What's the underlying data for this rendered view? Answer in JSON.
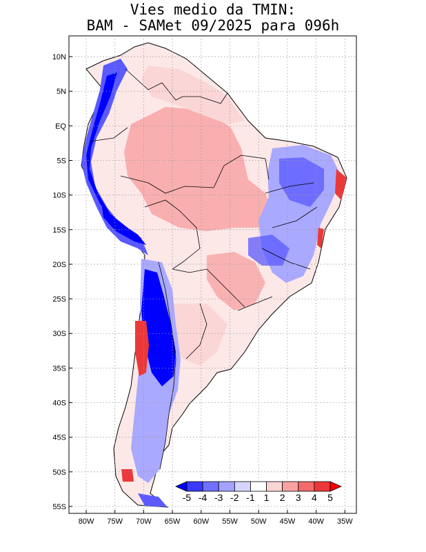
{
  "title": {
    "line1": "Vies medio da TMIN:",
    "line2": "BAM - SAMet 09/2025  para 096h"
  },
  "map": {
    "lat_ticks": [
      {
        "value": 10,
        "label": "10N"
      },
      {
        "value": 5,
        "label": "5N"
      },
      {
        "value": 0,
        "label": "EQ"
      },
      {
        "value": -5,
        "label": "5S"
      },
      {
        "value": -10,
        "label": "10S"
      },
      {
        "value": -15,
        "label": "15S"
      },
      {
        "value": -20,
        "label": "20S"
      },
      {
        "value": -25,
        "label": "25S"
      },
      {
        "value": -30,
        "label": "30S"
      },
      {
        "value": -35,
        "label": "35S"
      },
      {
        "value": -40,
        "label": "40S"
      },
      {
        "value": -45,
        "label": "45S"
      },
      {
        "value": -50,
        "label": "50S"
      },
      {
        "value": -55,
        "label": "55S"
      }
    ],
    "lon_ticks": [
      {
        "value": -80,
        "label": "80W"
      },
      {
        "value": -75,
        "label": "75W"
      },
      {
        "value": -70,
        "label": "70W"
      },
      {
        "value": -65,
        "label": "65W"
      },
      {
        "value": -60,
        "label": "60W"
      },
      {
        "value": -55,
        "label": "55W"
      },
      {
        "value": -50,
        "label": "50W"
      },
      {
        "value": -45,
        "label": "45W"
      },
      {
        "value": -40,
        "label": "40W"
      },
      {
        "value": -35,
        "label": "35W"
      }
    ],
    "lon_range": [
      -83,
      -33
    ],
    "lat_range": [
      -56,
      13
    ]
  },
  "colorbar": {
    "labels": [
      "-5",
      "-4",
      "-3",
      "-2",
      "-1",
      "1",
      "2",
      "3",
      "4",
      "5"
    ],
    "colors": [
      "#0000ff",
      "#3a3aff",
      "#7070ff",
      "#a3a3ff",
      "#d5d5fb",
      "#ffffff",
      "#fbd4d4",
      "#f9a2a2",
      "#f26a6a",
      "#ec3838",
      "#ff0000"
    ]
  },
  "colors": {
    "strong_blue": "#0000ff",
    "mid_blue": "#5a5aff",
    "light_blue": "#a9a9ff",
    "pale_blue": "#d8d8fb",
    "pale_red": "#fbd6d6",
    "light_red": "#f8a4a4",
    "strong_red": "#ec3838"
  }
}
